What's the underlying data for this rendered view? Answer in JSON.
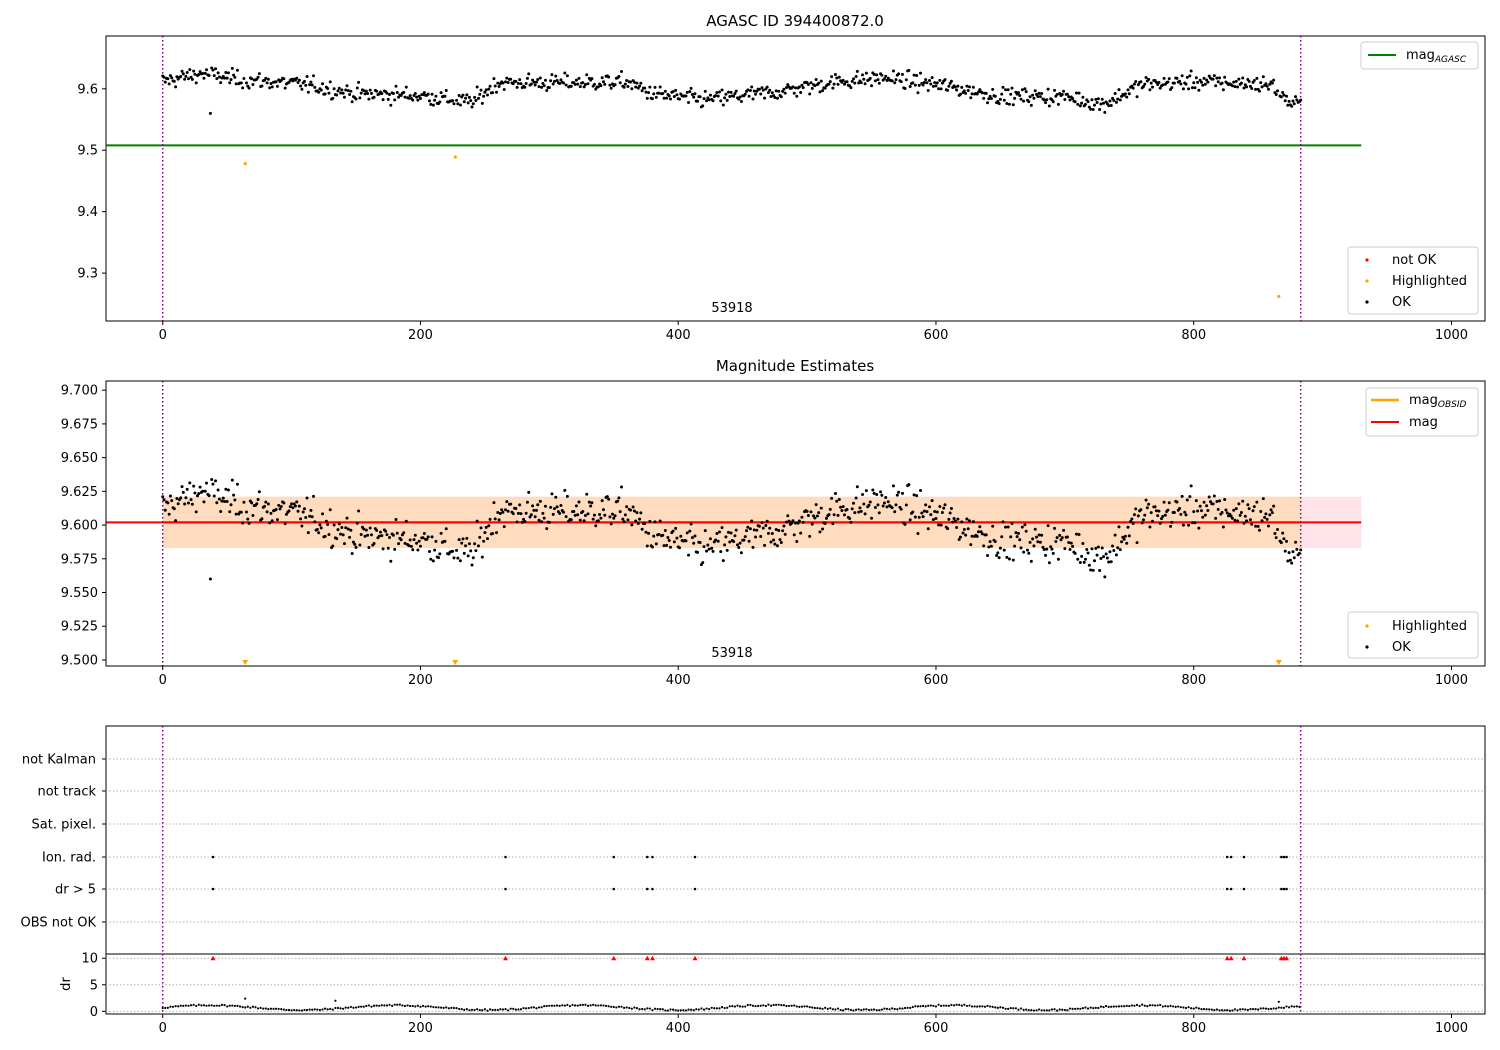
{
  "figure": {
    "title": "AGASC ID 394400872.0",
    "obsid_label": "53918"
  },
  "colors": {
    "ok": "#000000",
    "highlighted": "#ffa500",
    "not_ok": "#ff0000",
    "agasc_line": "#008000",
    "mag_line": "#ff0000",
    "mag_obsid_line": "#ffa500",
    "band_outer": "#ffc0cb",
    "band_inner": "#ffdab9",
    "obs_marker": "#800080",
    "grid": "#b0b0b0"
  },
  "chart_data": [
    {
      "id": "top",
      "type": "scatter",
      "title": "AGASC ID 394400872.0",
      "annotation": "53918",
      "xlim": [
        -44,
        1026
      ],
      "ylim": [
        9.222,
        9.686
      ],
      "xticks": [
        0,
        200,
        400,
        600,
        800,
        1000
      ],
      "yticks": [
        9.3,
        9.4,
        9.5,
        9.6
      ],
      "ytick_labels": [
        "9.3",
        "9.4",
        "9.5",
        "9.6"
      ],
      "mag_agasc": 9.508,
      "obs_boundaries": [
        0,
        883
      ],
      "legend_line": {
        "label_main": "mag",
        "label_sub": "AGASC",
        "placement": "upper right"
      },
      "legend_points": [
        {
          "label": "not OK",
          "color": "#ff0000"
        },
        {
          "label": "Highlighted",
          "color": "#ffa500"
        },
        {
          "label": "OK",
          "color": "#000000"
        }
      ],
      "highlighted_points": [
        [
          64,
          9.478
        ],
        [
          227,
          9.489
        ],
        [
          866,
          9.262
        ]
      ],
      "ok_outlier_points": [
        [
          37,
          9.56
        ]
      ]
    },
    {
      "id": "middle",
      "type": "scatter",
      "title": "Magnitude Estimates",
      "annotation": "53918",
      "xlim": [
        -44,
        1026
      ],
      "ylim": [
        9.4955,
        9.7068
      ],
      "xticks": [
        0,
        200,
        400,
        600,
        800,
        1000
      ],
      "yticks": [
        9.5,
        9.525,
        9.55,
        9.575,
        9.6,
        9.625,
        9.65,
        9.675,
        9.7
      ],
      "ytick_labels": [
        "9.500",
        "9.525",
        "9.550",
        "9.575",
        "9.600",
        "9.625",
        "9.650",
        "9.675",
        "9.700"
      ],
      "mag": 9.602,
      "mag_obsid": 9.602,
      "band_outer": [
        9.583,
        9.621
      ],
      "band_inner": [
        9.583,
        9.621
      ],
      "obs_boundaries": [
        0,
        883
      ],
      "legend_lines": [
        {
          "label_main": "mag",
          "label_sub": "OBSID",
          "color": "#ffa500"
        },
        {
          "label_main": "mag",
          "label_sub": "",
          "color": "#ff0000"
        }
      ],
      "legend_points": [
        {
          "label": "Highlighted",
          "color": "#ffa500"
        },
        {
          "label": "OK",
          "color": "#000000"
        }
      ],
      "highlighted_offscale_x": [
        64,
        227,
        866
      ],
      "ok_outlier_points": [
        [
          37,
          9.56
        ]
      ]
    },
    {
      "id": "flags",
      "type": "scatter",
      "xlim": [
        -44,
        1026
      ],
      "categories": [
        "not Kalman",
        "not track",
        "Sat. pixel.",
        "Ion. rad.",
        "dr > 5",
        "OBS not OK"
      ],
      "flag_points": {
        "Ion. rad.": [
          39,
          266,
          350,
          376,
          380,
          413,
          826,
          829,
          839,
          868,
          870,
          872
        ],
        "dr > 5": [
          39,
          266,
          350,
          376,
          380,
          413,
          826,
          829,
          839,
          868,
          870,
          872
        ]
      },
      "obs_boundaries": [
        0,
        883
      ]
    },
    {
      "id": "dr",
      "type": "scatter",
      "ylabel": "dr",
      "xlim": [
        -44,
        1026
      ],
      "ylim": [
        -0.5,
        10.8
      ],
      "xticks": [
        0,
        200,
        400,
        600,
        800,
        1000
      ],
      "yticks": [
        0,
        5,
        10
      ],
      "ytick_labels": [
        "0",
        "5",
        "10"
      ],
      "clipped_at_10_x": [
        39,
        266,
        350,
        376,
        380,
        413,
        826,
        829,
        839,
        868,
        870,
        872
      ],
      "spike_points": [
        [
          64,
          2.4
        ],
        [
          134,
          2.0
        ],
        [
          866,
          1.8
        ]
      ],
      "obs_boundaries": [
        0,
        883
      ]
    }
  ]
}
